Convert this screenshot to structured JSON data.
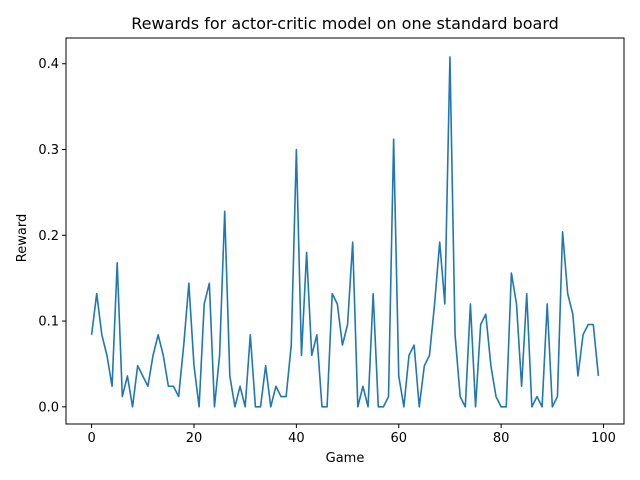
{
  "chart_data": {
    "type": "line",
    "title": "Rewards for actor-critic model on one standard board",
    "xlabel": "Game",
    "ylabel": "Reward",
    "xlim": [
      -5,
      104
    ],
    "ylim": [
      -0.02,
      0.43
    ],
    "xticks": [
      0,
      20,
      40,
      60,
      80,
      100
    ],
    "yticks": [
      0.0,
      0.1,
      0.2,
      0.3,
      0.4
    ],
    "grid": false,
    "line_color": "#1f77b4",
    "series": [
      {
        "x": [
          0,
          1,
          2,
          3,
          4,
          5,
          6,
          7,
          8,
          9,
          10,
          11,
          12,
          13,
          14,
          15,
          16,
          17,
          18,
          19,
          20,
          21,
          22,
          23,
          24,
          25,
          26,
          27,
          28,
          29,
          30,
          31,
          32,
          33,
          34,
          35,
          36,
          37,
          38,
          39,
          40,
          41,
          42,
          43,
          44,
          45,
          46,
          47,
          48,
          49,
          50,
          51,
          52,
          53,
          54,
          55,
          56,
          57,
          58,
          59,
          60,
          61,
          62,
          63,
          64,
          65,
          66,
          67,
          68,
          69,
          70,
          71,
          72,
          73,
          74,
          75,
          76,
          77,
          78,
          79,
          80,
          81,
          82,
          83,
          84,
          85,
          86,
          87,
          88,
          89,
          90,
          91,
          92,
          93,
          94,
          95,
          96,
          97,
          98,
          99
        ],
        "values": [
          0.084,
          0.132,
          0.084,
          0.06,
          0.024,
          0.168,
          0.012,
          0.036,
          0.0,
          0.048,
          0.036,
          0.024,
          0.06,
          0.084,
          0.06,
          0.024,
          0.024,
          0.012,
          0.072,
          0.144,
          0.048,
          0.0,
          0.12,
          0.144,
          0.0,
          0.06,
          0.228,
          0.036,
          0.0,
          0.024,
          0.0,
          0.084,
          0.0,
          0.0,
          0.048,
          0.0,
          0.024,
          0.012,
          0.012,
          0.072,
          0.3,
          0.06,
          0.18,
          0.06,
          0.084,
          0.0,
          0.0,
          0.132,
          0.12,
          0.072,
          0.096,
          0.192,
          0.0,
          0.024,
          0.0,
          0.132,
          0.0,
          0.0,
          0.012,
          0.312,
          0.036,
          0.0,
          0.06,
          0.072,
          0.0,
          0.048,
          0.06,
          0.12,
          0.192,
          0.12,
          0.408,
          0.084,
          0.012,
          0.0,
          0.12,
          0.0,
          0.096,
          0.108,
          0.048,
          0.012,
          0.0,
          0.0,
          0.156,
          0.12,
          0.024,
          0.132,
          0.0,
          0.012,
          0.0,
          0.12,
          0.0,
          0.012,
          0.204,
          0.132,
          0.108,
          0.036,
          0.084,
          0.096,
          0.096,
          0.036
        ]
      }
    ]
  }
}
